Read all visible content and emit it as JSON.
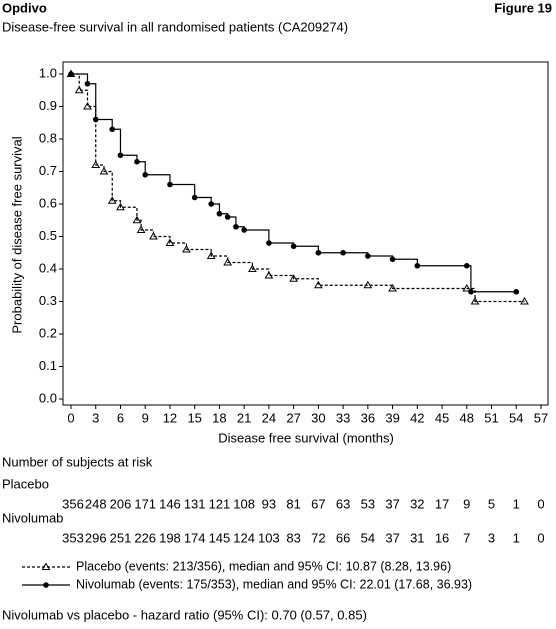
{
  "header": {
    "title": "Opdivo",
    "figure": "Figure 19",
    "subtitle": "Disease-free survival in all randomised patients (CA209274)"
  },
  "chart_data": {
    "type": "step",
    "xlabel": "Disease free survival (months)",
    "ylabel": "Probability of disease free survival",
    "xlim": [
      0,
      57
    ],
    "ylim": [
      0,
      1
    ],
    "xticks": [
      0,
      3,
      6,
      9,
      12,
      15,
      18,
      21,
      24,
      27,
      30,
      33,
      36,
      39,
      42,
      45,
      48,
      51,
      54,
      57
    ],
    "yticks": [
      {
        "value": 0,
        "label": "0.0"
      },
      0.1,
      0.2,
      0.3,
      0.4,
      0.5,
      0.6,
      0.7,
      0.8,
      0.9,
      {
        "value": 1,
        "label": "1.0"
      }
    ],
    "series": [
      {
        "name": "Placebo (events: 213/356), median and 95% CI: 10.87 (8.28, 13.96)",
        "color": "#000",
        "dash": true,
        "marker": "triangle",
        "x": [
          0,
          1,
          2,
          3,
          4,
          5,
          6,
          8,
          8.5,
          10,
          12,
          14,
          17,
          19,
          22,
          24,
          27,
          30,
          36,
          39,
          48,
          49,
          55
        ],
        "values": [
          1.0,
          0.95,
          0.9,
          0.72,
          0.7,
          0.61,
          0.59,
          0.55,
          0.52,
          0.5,
          0.48,
          0.46,
          0.44,
          0.42,
          0.4,
          0.38,
          0.37,
          0.35,
          0.35,
          0.34,
          0.34,
          0.3,
          0.3
        ]
      },
      {
        "name": "Nivolumab (events: 175/353), median and 95% CI: 22.01 (17.68, 36.93)",
        "color": "#000",
        "dash": false,
        "marker": "circle",
        "x": [
          0,
          2,
          3,
          5,
          6,
          8,
          9,
          12,
          15,
          17,
          18,
          19,
          20,
          21,
          24,
          27,
          30,
          33,
          36,
          39,
          42,
          48,
          48.5,
          54
        ],
        "values": [
          1.0,
          0.97,
          0.86,
          0.83,
          0.75,
          0.73,
          0.69,
          0.66,
          0.62,
          0.6,
          0.57,
          0.56,
          0.53,
          0.52,
          0.48,
          0.47,
          0.45,
          0.45,
          0.44,
          0.43,
          0.41,
          0.41,
          0.33,
          0.33
        ]
      }
    ]
  },
  "risk_table": {
    "title": "Number of subjects at risk",
    "rows": [
      {
        "label": "Placebo",
        "counts": [
          356,
          248,
          206,
          171,
          146,
          131,
          121,
          108,
          93,
          81,
          67,
          63,
          53,
          37,
          32,
          17,
          9,
          5,
          1,
          0
        ]
      },
      {
        "label": "Nivolumab",
        "counts": [
          353,
          296,
          251,
          226,
          198,
          174,
          145,
          124,
          103,
          83,
          72,
          66,
          54,
          37,
          31,
          16,
          7,
          3,
          1,
          0
        ]
      }
    ]
  },
  "footnote": "Nivolumab vs placebo - hazard ratio (95% CI): 0.70 (0.57, 0.85)"
}
